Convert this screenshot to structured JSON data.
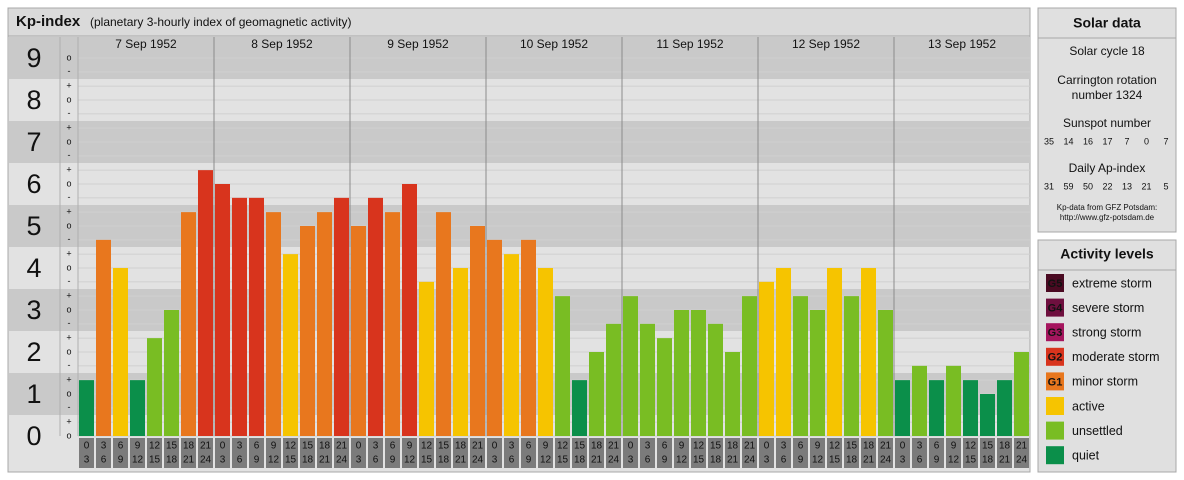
{
  "chart_data": {
    "type": "bar",
    "title": "Kp-index",
    "subtitle": "(planetary 3-hourly index of geomagnetic activity)",
    "ylim": [
      0,
      9.5
    ],
    "yticks": [
      0,
      1,
      2,
      3,
      4,
      5,
      6,
      7,
      8,
      9
    ],
    "subticks": [
      {
        "value": 9,
        "label": "o"
      },
      {
        "value": 8.67,
        "label": "-"
      },
      {
        "value": 8.33,
        "label": "+"
      },
      {
        "value": 8,
        "label": "o"
      },
      {
        "value": 7.67,
        "label": "-"
      },
      {
        "value": 7.33,
        "label": "+"
      },
      {
        "value": 7,
        "label": "o"
      },
      {
        "value": 6.67,
        "label": "-"
      },
      {
        "value": 6.33,
        "label": "+"
      },
      {
        "value": 6,
        "label": "o"
      },
      {
        "value": 5.67,
        "label": "-"
      },
      {
        "value": 5.33,
        "label": "+"
      },
      {
        "value": 5,
        "label": "o"
      },
      {
        "value": 4.67,
        "label": "-"
      },
      {
        "value": 4.33,
        "label": "+"
      },
      {
        "value": 4,
        "label": "o"
      },
      {
        "value": 3.67,
        "label": "-"
      },
      {
        "value": 3.33,
        "label": "+"
      },
      {
        "value": 3,
        "label": "o"
      },
      {
        "value": 2.67,
        "label": "-"
      },
      {
        "value": 2.33,
        "label": "+"
      },
      {
        "value": 2,
        "label": "o"
      },
      {
        "value": 1.67,
        "label": "-"
      },
      {
        "value": 1.33,
        "label": "+"
      },
      {
        "value": 1,
        "label": "o"
      },
      {
        "value": 0.67,
        "label": "-"
      },
      {
        "value": 0.33,
        "label": "+"
      },
      {
        "value": 0,
        "label": "o"
      }
    ],
    "hours": [
      [
        "0",
        "3"
      ],
      [
        "3",
        "6"
      ],
      [
        "6",
        "9"
      ],
      [
        "9",
        "12"
      ],
      [
        "12",
        "15"
      ],
      [
        "15",
        "18"
      ],
      [
        "18",
        "21"
      ],
      [
        "21",
        "24"
      ]
    ],
    "series": [
      {
        "name": "7 Sep 1952",
        "values": [
          1.33,
          4.67,
          4,
          1.33,
          2.33,
          3,
          5.33,
          6.33
        ],
        "colors": [
          "#0b8f4a",
          "#e8771e",
          "#f6c400",
          "#0b8f4a",
          "#79bd23",
          "#79bd23",
          "#e8771e",
          "#d8341d"
        ]
      },
      {
        "name": "8 Sep 1952",
        "values": [
          6,
          5.67,
          5.67,
          5.33,
          4.33,
          5,
          5.33,
          5.67
        ],
        "colors": [
          "#d8341d",
          "#d8341d",
          "#d8341d",
          "#e8771e",
          "#f6c400",
          "#e8771e",
          "#e8771e",
          "#d8341d"
        ]
      },
      {
        "name": "9 Sep 1952",
        "values": [
          5,
          5.67,
          5.33,
          6,
          3.67,
          5.33,
          4,
          5
        ],
        "colors": [
          "#e8771e",
          "#d8341d",
          "#e8771e",
          "#d8341d",
          "#f6c400",
          "#e8771e",
          "#f6c400",
          "#e8771e"
        ]
      },
      {
        "name": "10 Sep 1952",
        "values": [
          4.67,
          4.33,
          4.67,
          4,
          3.33,
          1.33,
          2,
          2.67
        ],
        "colors": [
          "#e8771e",
          "#f6c400",
          "#e8771e",
          "#f6c400",
          "#79bd23",
          "#0b8f4a",
          "#79bd23",
          "#79bd23"
        ]
      },
      {
        "name": "11 Sep 1952",
        "values": [
          3.33,
          2.67,
          2.33,
          3,
          3,
          2.67,
          2,
          3.33
        ],
        "colors": [
          "#79bd23",
          "#79bd23",
          "#79bd23",
          "#79bd23",
          "#79bd23",
          "#79bd23",
          "#79bd23",
          "#79bd23"
        ]
      },
      {
        "name": "12 Sep 1952",
        "values": [
          3.67,
          4,
          3.33,
          3,
          4,
          3.33,
          4,
          3
        ],
        "colors": [
          "#f6c400",
          "#f6c400",
          "#79bd23",
          "#79bd23",
          "#f6c400",
          "#79bd23",
          "#f6c400",
          "#79bd23"
        ]
      },
      {
        "name": "13 Sep 1952",
        "values": [
          1.33,
          1.67,
          1.33,
          1.67,
          1.33,
          1,
          1.33,
          2
        ],
        "colors": [
          "#0b8f4a",
          "#79bd23",
          "#0b8f4a",
          "#79bd23",
          "#0b8f4a",
          "#0b8f4a",
          "#0b8f4a",
          "#79bd23"
        ]
      }
    ]
  },
  "solar_data": {
    "title": "Solar data",
    "cycle": "Solar cycle 18",
    "rotation": [
      "Carrington rotation",
      "number 1324"
    ],
    "sunspot_title": "Sunspot number",
    "sunspots": [
      35,
      14,
      16,
      17,
      7,
      0,
      7
    ],
    "ap_title": "Daily Ap-index",
    "ap": [
      31,
      59,
      50,
      22,
      13,
      21,
      5
    ],
    "source": [
      "Kp-data from GFZ Potsdam:",
      "http://www.gfz-potsdam.de"
    ]
  },
  "activity_levels": {
    "title": "Activity levels",
    "items": [
      {
        "badge": "G5",
        "label": "extreme storm",
        "color": "#4a0a22"
      },
      {
        "badge": "G4",
        "label": "severe storm",
        "color": "#6e0f3e"
      },
      {
        "badge": "G3",
        "label": "strong storm",
        "color": "#a5165e"
      },
      {
        "badge": "G2",
        "label": "moderate storm",
        "color": "#d8341d"
      },
      {
        "badge": "G1",
        "label": "minor storm",
        "color": "#e8771e"
      },
      {
        "label": "active",
        "color": "#f6c400"
      },
      {
        "label": "unsettled",
        "color": "#79bd23"
      },
      {
        "label": "quiet",
        "color": "#0b8f4a"
      }
    ]
  }
}
